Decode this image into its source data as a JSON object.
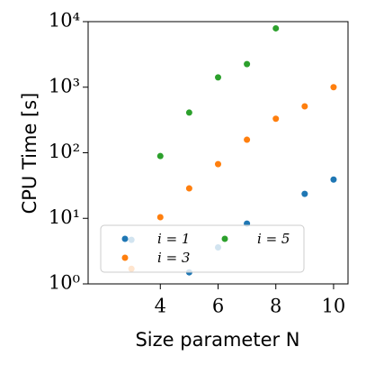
{
  "chart_data": {
    "type": "scatter",
    "xlabel": "Size parameter N",
    "ylabel": "CPU Time [s]",
    "xlim": [
      1.5,
      10.5
    ],
    "xticks": [
      4,
      6,
      8,
      10
    ],
    "ylim": [
      1,
      10000
    ],
    "yscale": "log",
    "yticks": [
      {
        "value": 1,
        "label": "10⁰"
      },
      {
        "value": 10,
        "label": "10¹"
      },
      {
        "value": 100,
        "label": "10²"
      },
      {
        "value": 1000,
        "label": "10³"
      },
      {
        "value": 10000,
        "label": "10⁴"
      }
    ],
    "legend": "lower left",
    "series": [
      {
        "name": "i = 1",
        "color": "#1f77b4",
        "x": [
          3,
          5,
          6,
          7,
          9,
          10
        ],
        "values": [
          4.7,
          1.5,
          3.6,
          8.3,
          23.6,
          39
        ]
      },
      {
        "name": "i = 3",
        "color": "#ff7f0e",
        "x": [
          3,
          4,
          5,
          6,
          7,
          8,
          9,
          10
        ],
        "values": [
          1.7,
          10.4,
          28.6,
          67,
          158,
          330,
          510,
          1000
        ]
      },
      {
        "name": "i = 5",
        "color": "#2ca02c",
        "x": [
          4,
          5,
          6,
          7,
          8
        ],
        "values": [
          89,
          410,
          1410,
          2250,
          7900
        ]
      }
    ]
  }
}
